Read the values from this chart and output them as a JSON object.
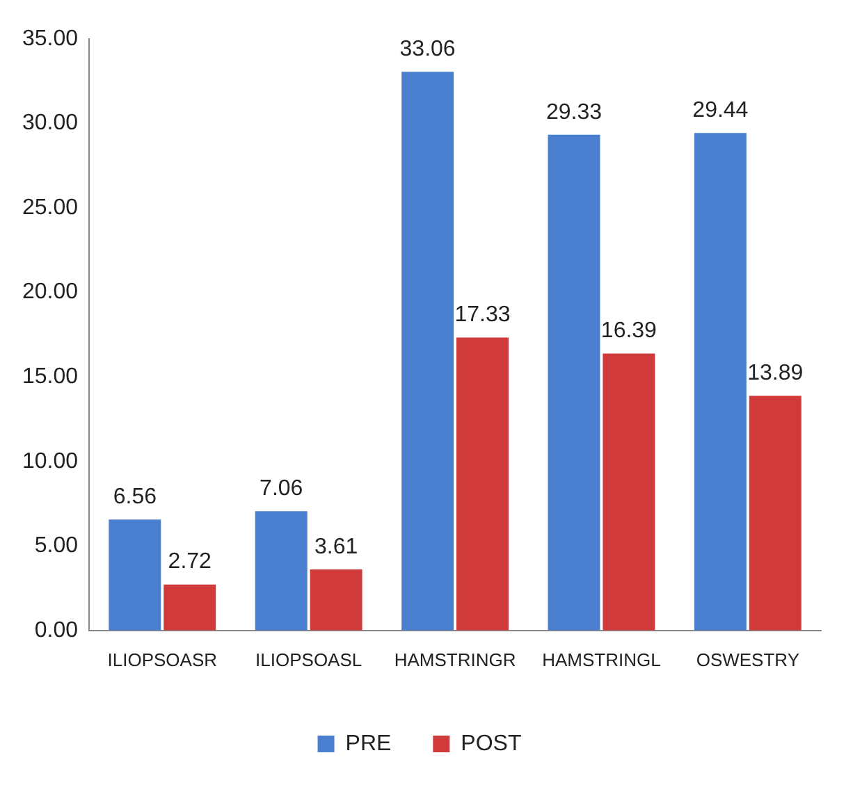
{
  "chart_data": {
    "type": "bar",
    "categories": [
      "ILIOPSOASR",
      "ILIOPSOASL",
      "HAMSTRINGR",
      "HAMSTRINGL",
      "OSWESTRY"
    ],
    "series": [
      {
        "name": "PRE",
        "color": "#4a7fd0",
        "values": [
          6.56,
          7.06,
          33.06,
          29.33,
          29.44
        ]
      },
      {
        "name": "POST",
        "color": "#d03a3a",
        "values": [
          2.72,
          3.61,
          17.33,
          16.39,
          13.89
        ]
      }
    ],
    "ylim": [
      0,
      35
    ],
    "yticks": [
      {
        "value": 0,
        "label": "0.00"
      },
      {
        "value": 5,
        "label": "5.00"
      },
      {
        "value": 10,
        "label": "10.00"
      },
      {
        "value": 15,
        "label": "15.00"
      },
      {
        "value": 20,
        "label": "20.00"
      },
      {
        "value": 25,
        "label": "25.00"
      },
      {
        "value": 30,
        "label": "30.00"
      },
      {
        "value": 35,
        "label": "35.00"
      }
    ],
    "grid": false,
    "legend": "bottom",
    "data_labels": true
  }
}
